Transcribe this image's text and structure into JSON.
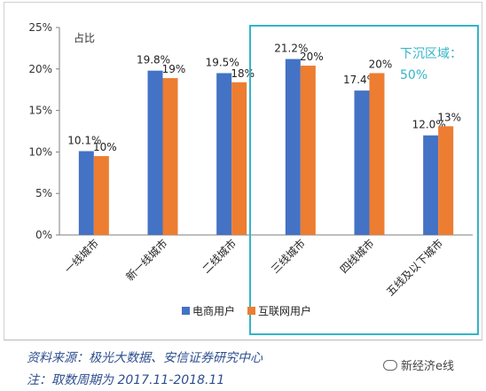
{
  "chart_data": {
    "type": "bar",
    "ylabel": "占比",
    "ylim": [
      0,
      25
    ],
    "yticks": [
      "0%",
      "5%",
      "10%",
      "15%",
      "20%",
      "25%"
    ],
    "categories": [
      "一线城市",
      "新一线城市",
      "二线城市",
      "三线城市",
      "四线城市",
      "五线及以下城市"
    ],
    "series": [
      {
        "name": "电商用户",
        "color": "#4472c4",
        "values": [
          10.1,
          19.8,
          19.5,
          21.2,
          17.4,
          12.0
        ],
        "labels": [
          "10.1%",
          "19.8%",
          "19.5%",
          "21.2%",
          "17.4%",
          "12.0%"
        ]
      },
      {
        "name": "互联网用户",
        "color": "#ed7d31",
        "values": [
          9.5,
          18.9,
          18.4,
          20.4,
          19.5,
          13.1
        ],
        "labels": [
          "10%",
          "19%",
          "18%",
          "20%",
          "20%",
          "13%"
        ]
      }
    ],
    "grid": false,
    "legend": "bottom-center",
    "annotation": {
      "title": "下沉区域：",
      "value": "50%",
      "color": "#33b5c8"
    }
  },
  "footer": {
    "source": "资料来源：极光大数据、安信证券研究中心",
    "note": "注：取数周期为 2017.11-2018.11",
    "watermark": "新经济e线"
  }
}
